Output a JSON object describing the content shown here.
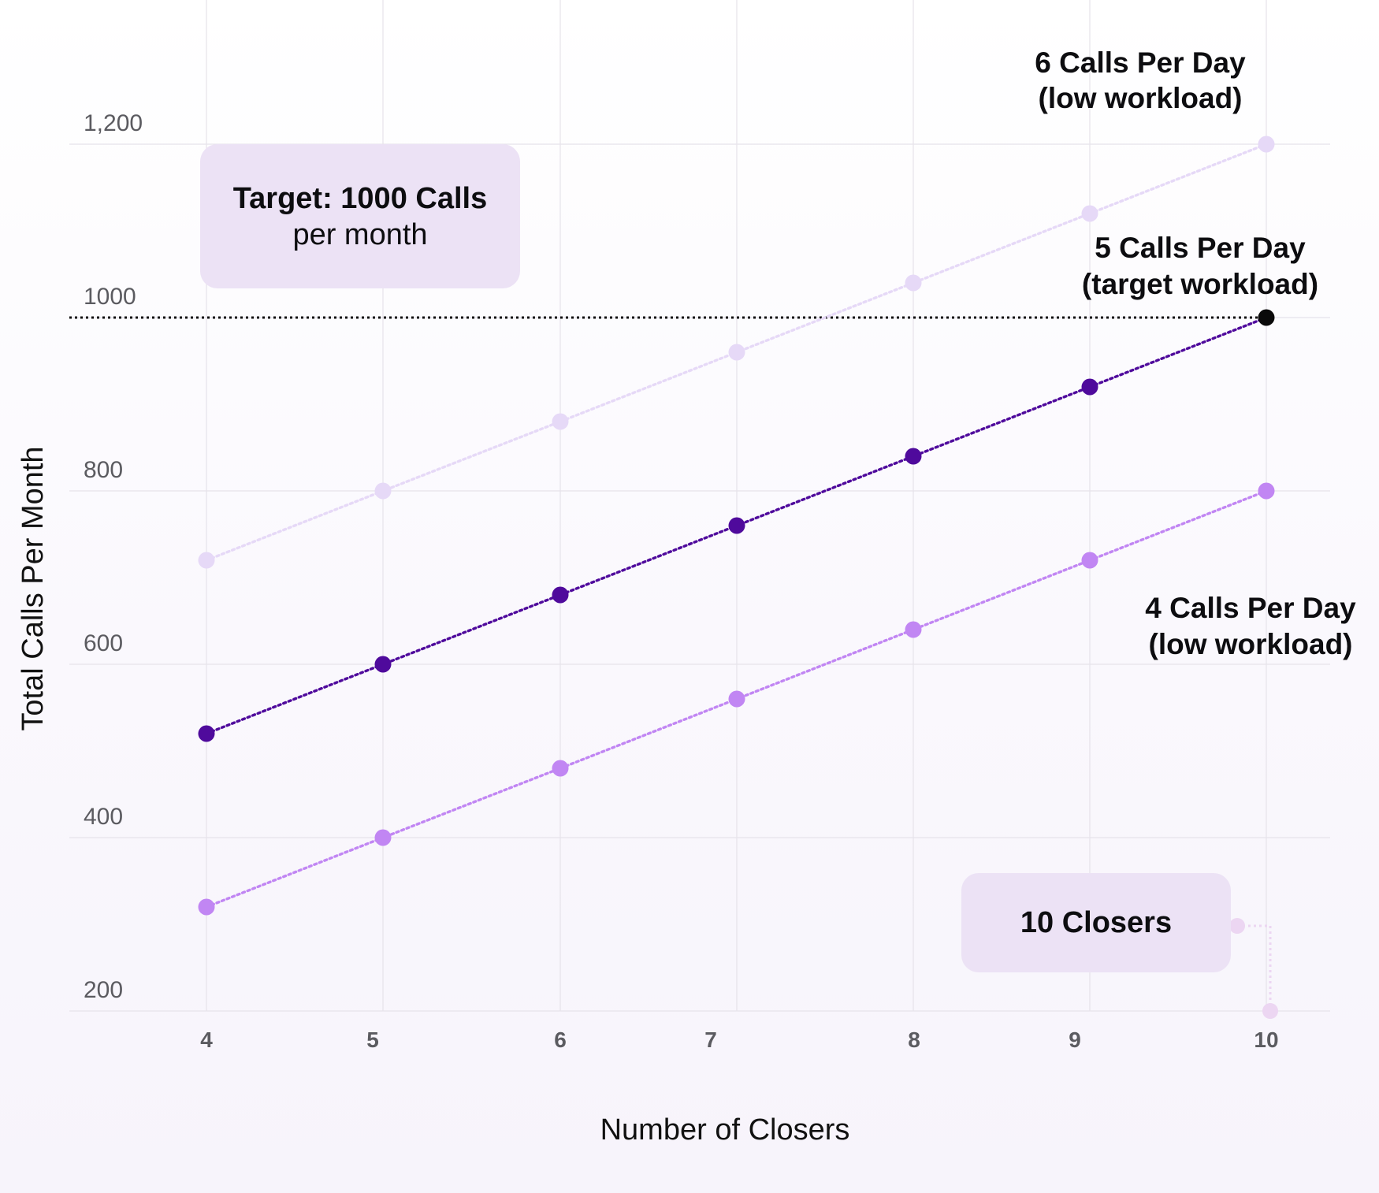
{
  "chart_data": {
    "type": "line",
    "xlabel": "Number of Closers",
    "ylabel": "Total Calls Per Month",
    "x": [
      4,
      5,
      6,
      7,
      8,
      9,
      10
    ],
    "x_tick_labels": [
      "4",
      "5",
      "6",
      "7",
      "8",
      "9",
      "10"
    ],
    "y_ticks": [
      200,
      400,
      600,
      800,
      1000,
      1200
    ],
    "y_tick_labels": [
      "200",
      "400",
      "600",
      "800",
      "1000",
      "1,200"
    ],
    "ylim": [
      200,
      1200
    ],
    "grid": true,
    "series": [
      {
        "key": "six",
        "values": [
          720,
          800,
          880,
          960,
          1040,
          1120,
          1200
        ],
        "color": "#e6d9f7",
        "label_line1": "6 Calls Per Day",
        "label_line2": "(low workload)"
      },
      {
        "key": "five",
        "values": [
          520,
          600,
          680,
          760,
          840,
          920,
          1000
        ],
        "color": "#4f0a9c",
        "last_point_color": "#0a0a0a",
        "label_line1": "5 Calls Per Day",
        "label_line2": "(target workload)"
      },
      {
        "key": "four",
        "values": [
          320,
          400,
          480,
          560,
          640,
          720,
          800
        ],
        "color": "#c186f3",
        "label_line1": "4 Calls Per Day",
        "label_line2": "(low workload)"
      }
    ],
    "target_line": {
      "value": 1000,
      "color": "#111111"
    },
    "annotations": {
      "target": {
        "bold": "Target: 1000 Calls",
        "normal": "per month"
      },
      "closers": {
        "bold": "10 Closers"
      }
    },
    "accent_colors": {
      "callout_background": "#ece2f5",
      "gridline": "#e6e3ea",
      "connector": "#ecd6f2"
    }
  }
}
